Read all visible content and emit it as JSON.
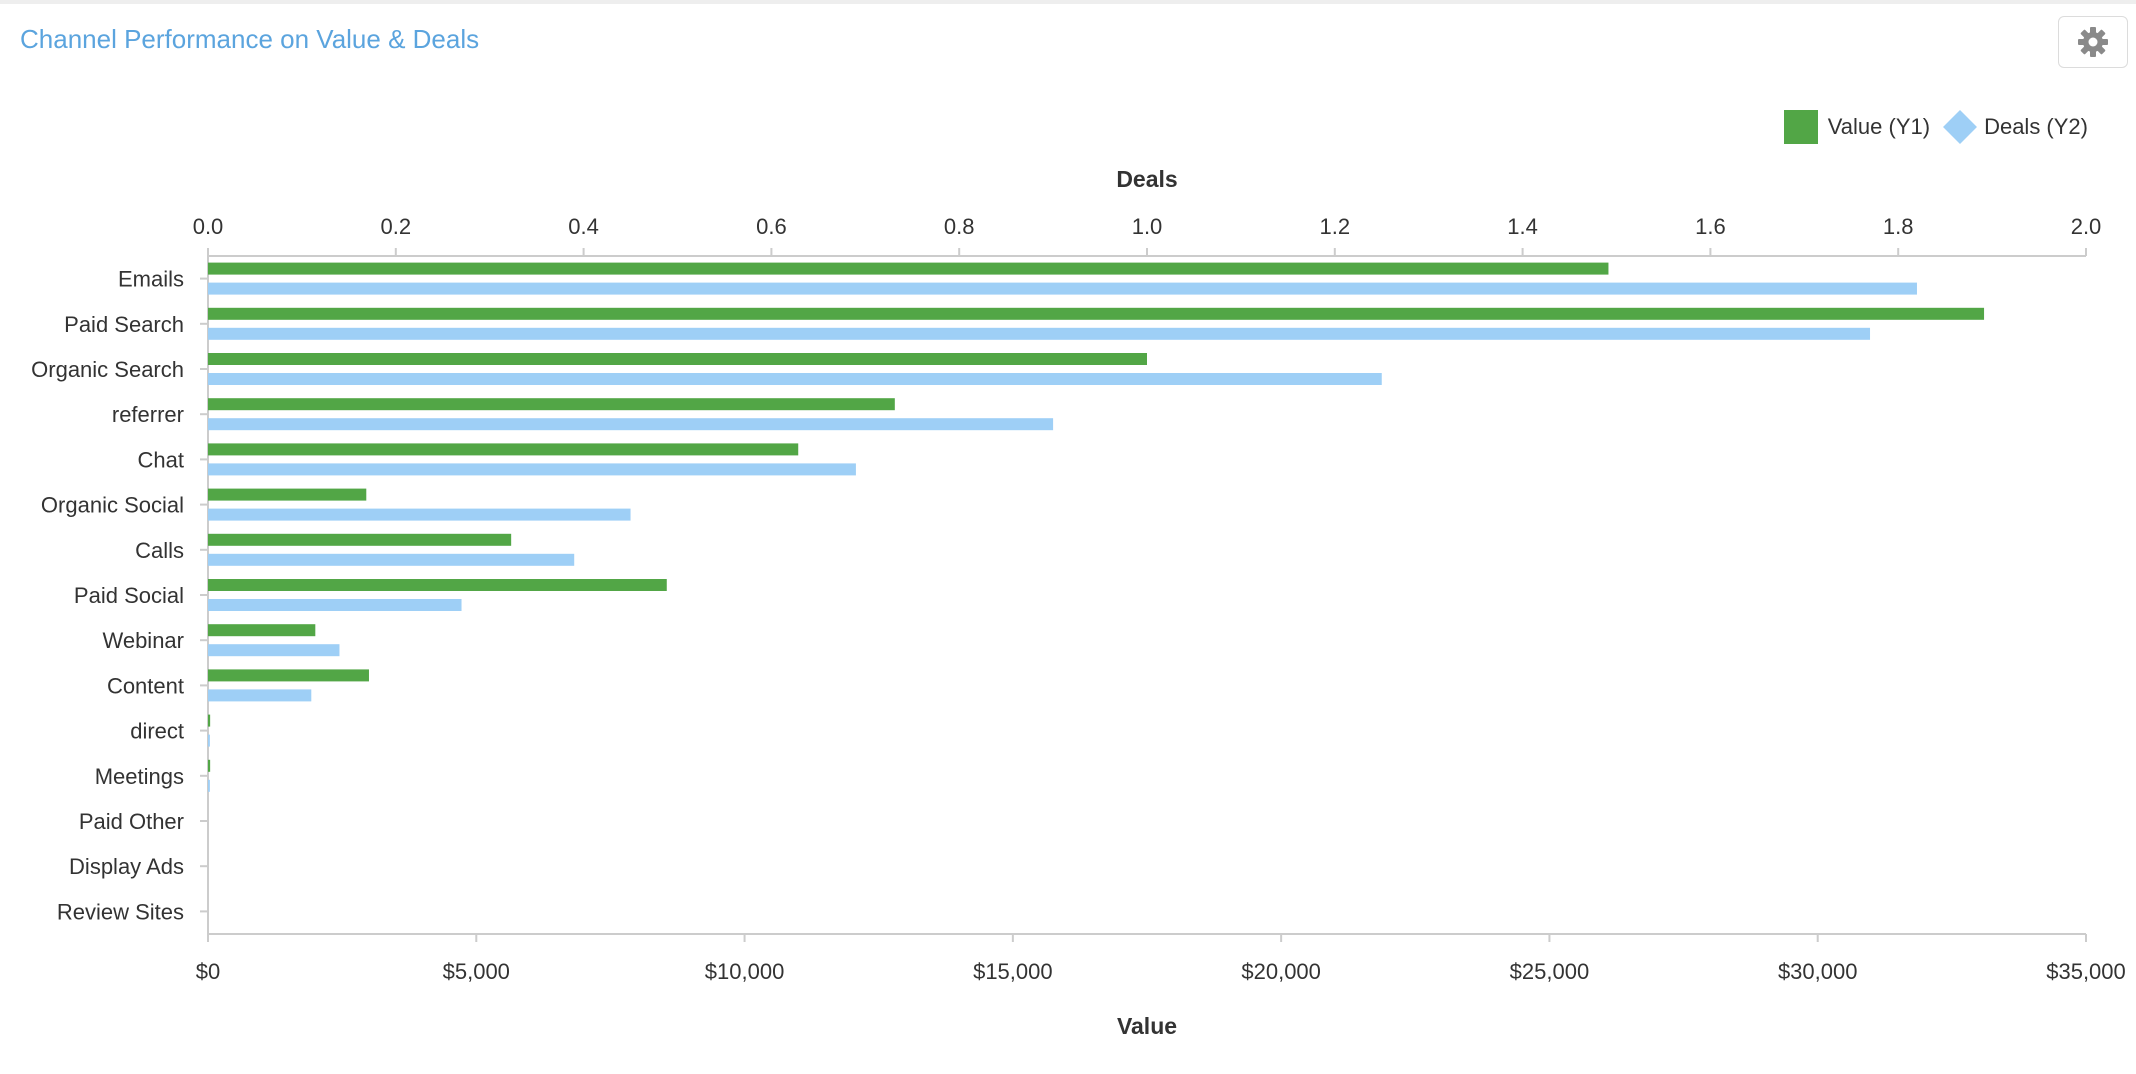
{
  "header": {
    "title": "Channel Performance on Value & Deals",
    "settings_icon": "gear-icon"
  },
  "legend": {
    "items": [
      {
        "label": "Value (Y1)",
        "color": "#52a646",
        "marker": "square"
      },
      {
        "label": "Deals (Y2)",
        "color": "#9ecff6",
        "marker": "diamond"
      }
    ]
  },
  "chart_data": {
    "type": "bar",
    "orientation": "horizontal",
    "title": "Channel Performance on Value & Deals",
    "categories": [
      "Emails",
      "Paid Search",
      "Organic Search",
      "referrer",
      "Chat",
      "Organic Social",
      "Calls",
      "Paid Social",
      "Webinar",
      "Content",
      "direct",
      "Meetings",
      "Paid Other",
      "Display Ads",
      "Review Sites"
    ],
    "series": [
      {
        "name": "Value (Y1)",
        "axis": "bottom",
        "color": "#52a646",
        "values": [
          26100,
          33100,
          17500,
          12800,
          11000,
          2950,
          5650,
          8550,
          2000,
          3000,
          40,
          40,
          0,
          0,
          0
        ]
      },
      {
        "name": "Deals (Y2)",
        "axis": "top",
        "color": "#9ecff6",
        "values": [
          1.82,
          1.77,
          1.25,
          0.9,
          0.69,
          0.45,
          0.39,
          0.27,
          0.14,
          0.11,
          0.002,
          0.002,
          0,
          0,
          0
        ]
      }
    ],
    "x_bottom": {
      "label": "Value",
      "lim": [
        0,
        35000
      ],
      "ticks": [
        0,
        5000,
        10000,
        15000,
        20000,
        25000,
        30000,
        35000
      ],
      "tick_labels": [
        "$0",
        "$5,000",
        "$10,000",
        "$15,000",
        "$20,000",
        "$25,000",
        "$30,000",
        "$35,000"
      ]
    },
    "x_top": {
      "label": "Deals",
      "lim": [
        0,
        2
      ],
      "ticks": [
        0,
        0.2,
        0.4,
        0.6,
        0.8,
        1.0,
        1.2,
        1.4,
        1.6,
        1.8,
        2.0
      ],
      "tick_labels": [
        "0.0",
        "0.2",
        "0.4",
        "0.6",
        "0.8",
        "1.0",
        "1.2",
        "1.4",
        "1.6",
        "1.8",
        "2.0"
      ]
    },
    "grid": false,
    "legend_position": "top-right"
  }
}
